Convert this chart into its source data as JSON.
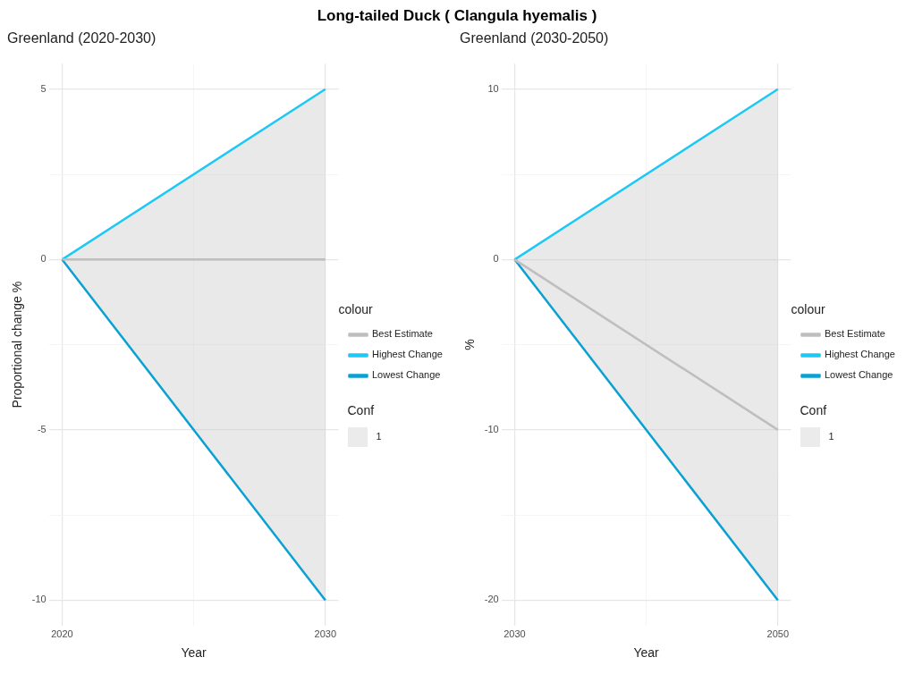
{
  "chart_data": [
    {
      "type": "line",
      "title": "Long-tailed Duck ( Clangula hyemalis )",
      "subtitle": "Greenland (2020-2030)",
      "xlabel": "Year",
      "ylabel": "Proportional change %",
      "legend_title": "colour",
      "x": [
        2020,
        2030
      ],
      "series": [
        {
          "name": "Best Estimate",
          "color": "#bebebe",
          "values": [
            0,
            0
          ],
          "lower": [
            0,
            -10
          ],
          "upper": [
            0,
            5
          ]
        },
        {
          "name": "Highest Change",
          "color": "#1ec8f5",
          "values": [
            0,
            5
          ]
        },
        {
          "name": "Lowest Change",
          "color": "#0aa0d2",
          "values": [
            0,
            -10
          ]
        }
      ],
      "annotations": [
        "Conf",
        "1"
      ],
      "xlim": [
        2019.5,
        2030.5
      ],
      "xticks": [
        2020,
        {
          "value": 2025,
          "label": null
        },
        2030
      ],
      "ylim": [
        -10.75,
        5.75
      ],
      "yticks": [
        -10,
        {
          "value": -7.5,
          "label": null
        },
        -5,
        {
          "value": -2.5,
          "label": null
        },
        0,
        {
          "value": 2.5,
          "label": null
        },
        5
      ],
      "grid": true,
      "legend": "right",
      "marker": "none",
      "line_style": "solid"
    },
    {
      "type": "line",
      "subtitle": "Greenland (2030-2050)",
      "xlabel": "Year",
      "ylabel": "%",
      "legend_title": "colour",
      "x": [
        2030,
        2050
      ],
      "series": [
        {
          "name": "Best Estimate",
          "color": "#bebebe",
          "values": [
            0,
            -10
          ],
          "lower": [
            0,
            -20
          ],
          "upper": [
            0,
            10
          ]
        },
        {
          "name": "Highest Change",
          "color": "#1ec8f5",
          "values": [
            0,
            10
          ]
        },
        {
          "name": "Lowest Change",
          "color": "#0aa0d2",
          "values": [
            0,
            -20
          ]
        }
      ],
      "annotations": [
        "Conf",
        "1"
      ],
      "xlim": [
        2029,
        2051
      ],
      "xticks": [
        2030,
        {
          "value": 2040,
          "label": null
        },
        2050
      ],
      "ylim": [
        -21.5,
        11.5
      ],
      "yticks": [
        -20,
        {
          "value": -15,
          "label": null
        },
        -10,
        {
          "value": -5,
          "label": null
        },
        0,
        {
          "value": 5,
          "label": null
        },
        10
      ],
      "grid": true,
      "legend": "right",
      "marker": "none",
      "line_style": "solid"
    }
  ]
}
